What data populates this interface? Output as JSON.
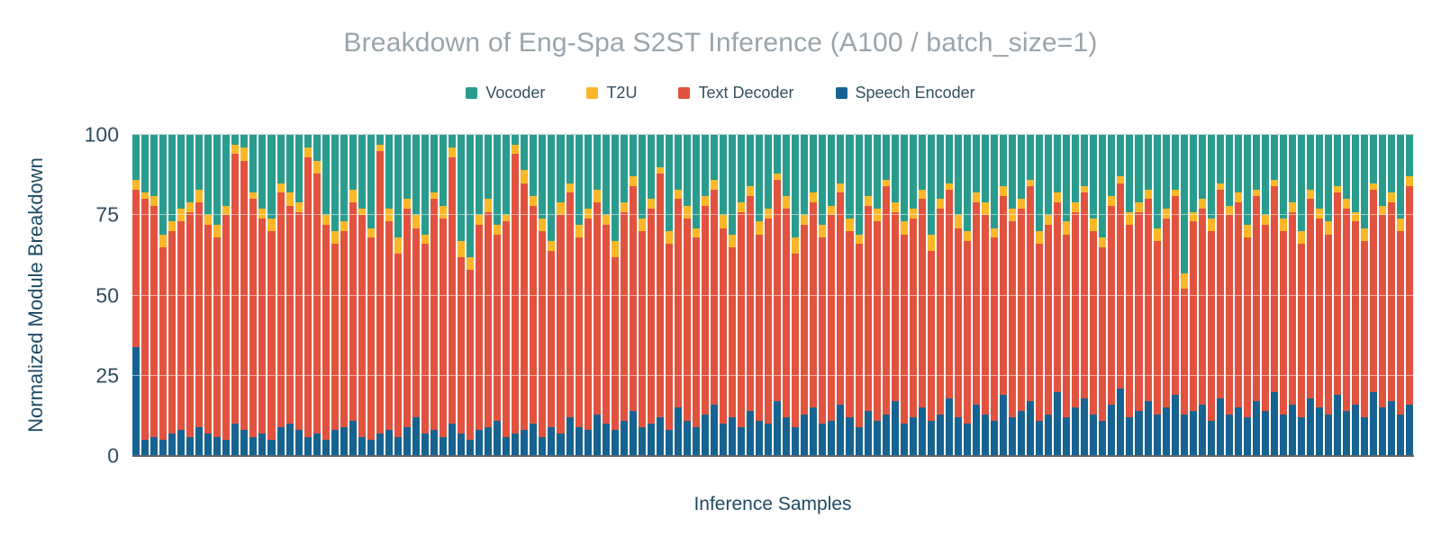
{
  "chart": {
    "title": "Breakdown of Eng-Spa S2ST Inference (A100 / batch_size=1)",
    "title_color": "#9aa4ab",
    "background": "#ffffff"
  },
  "chart_data": {
    "type": "bar",
    "stacked": true,
    "normalized": true,
    "title": "Breakdown of Eng-Spa S2ST Inference (A100 / batch_size=1)",
    "xlabel": "Inference Samples",
    "ylabel": "Normalized Module Breakdown",
    "ylim": [
      0,
      100
    ],
    "yticks": [
      0,
      25,
      50,
      75,
      100
    ],
    "x_tick_labels": "none (142 unlabeled inference samples)",
    "grid": true,
    "legend_position": "top",
    "legend_items": [
      "Vocoder",
      "T2U",
      "Text Decoder",
      "Speech Encoder"
    ],
    "series": [
      {
        "name": "Speech Encoder",
        "color": "#166391",
        "values": [
          34,
          5,
          6,
          5,
          7,
          8,
          6,
          9,
          7,
          6,
          5,
          10,
          8,
          6,
          7,
          5,
          9,
          10,
          8,
          6,
          7,
          5,
          8,
          9,
          11,
          6,
          5,
          7,
          8,
          6,
          9,
          12,
          7,
          8,
          6,
          10,
          7,
          5,
          8,
          9,
          11,
          6,
          7,
          8,
          10,
          6,
          9,
          7,
          12,
          9,
          8,
          13,
          10,
          8,
          11,
          14,
          9,
          10,
          12,
          8,
          15,
          11,
          9,
          13,
          16,
          10,
          12,
          9,
          14,
          11,
          10,
          17,
          12,
          9,
          13,
          15,
          10,
          11,
          16,
          12,
          9,
          14,
          11,
          13,
          17,
          10,
          12,
          15,
          11,
          13,
          18,
          12,
          10,
          16,
          13,
          11,
          19,
          12,
          14,
          17,
          11,
          13,
          20,
          12,
          15,
          18,
          13,
          11,
          16,
          21,
          12,
          14,
          17,
          13,
          15,
          19,
          13,
          14,
          16,
          11,
          18,
          13,
          15,
          12,
          17,
          14,
          20,
          13,
          16,
          12,
          18,
          15,
          13,
          19,
          14,
          16,
          12,
          20,
          15,
          17,
          13,
          16
        ]
      },
      {
        "name": "Text Decoder",
        "color": "#e2533f",
        "values": [
          49,
          75,
          72,
          60,
          63,
          65,
          70,
          70,
          65,
          62,
          70,
          84,
          84,
          74,
          67,
          65,
          73,
          68,
          68,
          87,
          81,
          67,
          58,
          61,
          68,
          69,
          63,
          88,
          65,
          57,
          68,
          59,
          59,
          72,
          68,
          83,
          55,
          53,
          64,
          67,
          58,
          67,
          87,
          77,
          68,
          64,
          55,
          68,
          70,
          59,
          66,
          66,
          62,
          54,
          65,
          70,
          61,
          67,
          76,
          58,
          65,
          63,
          59,
          65,
          67,
          61,
          53,
          67,
          67,
          58,
          64,
          69,
          65,
          54,
          59,
          64,
          58,
          64,
          66,
          58,
          57,
          64,
          62,
          71,
          59,
          59,
          62,
          65,
          53,
          64,
          65,
          59,
          57,
          63,
          62,
          57,
          62,
          61,
          63,
          67,
          55,
          59,
          59,
          57,
          61,
          64,
          57,
          54,
          62,
          64,
          60,
          62,
          63,
          54,
          59,
          62,
          39,
          59,
          61,
          59,
          65,
          62,
          64,
          56,
          64,
          58,
          64,
          57,
          60,
          54,
          62,
          59,
          56,
          63,
          63,
          57,
          55,
          63,
          60,
          62,
          57,
          68
        ]
      },
      {
        "name": "T2U",
        "color": "#fab828",
        "values": [
          3,
          2,
          3,
          4,
          3,
          4,
          3,
          4,
          3,
          4,
          3,
          3,
          4,
          2,
          3,
          4,
          3,
          4,
          3,
          3,
          4,
          3,
          4,
          3,
          4,
          2,
          3,
          2,
          4,
          5,
          3,
          4,
          3,
          2,
          4,
          3,
          5,
          4,
          3,
          4,
          3,
          2,
          3,
          4,
          3,
          4,
          3,
          4,
          3,
          4,
          3,
          4,
          3,
          5,
          3,
          3,
          4,
          3,
          2,
          4,
          3,
          4,
          3,
          3,
          3,
          4,
          4,
          3,
          3,
          4,
          3,
          2,
          4,
          5,
          3,
          3,
          4,
          3,
          3,
          4,
          3,
          3,
          4,
          2,
          3,
          4,
          3,
          3,
          5,
          3,
          2,
          4,
          3,
          3,
          4,
          3,
          3,
          4,
          3,
          2,
          4,
          3,
          3,
          4,
          3,
          2,
          4,
          3,
          3,
          2,
          4,
          3,
          3,
          4,
          3,
          2,
          5,
          3,
          3,
          4,
          2,
          3,
          3,
          4,
          2,
          3,
          2,
          4,
          3,
          4,
          3,
          3,
          4,
          2,
          3,
          3,
          4,
          2,
          3,
          3,
          4,
          3
        ]
      },
      {
        "name": "Vocoder",
        "color": "#2a9c8e",
        "values": [
          14,
          18,
          19,
          31,
          27,
          23,
          21,
          17,
          25,
          28,
          22,
          3,
          4,
          18,
          23,
          26,
          15,
          18,
          21,
          4,
          8,
          25,
          30,
          27,
          17,
          23,
          29,
          3,
          23,
          32,
          20,
          25,
          31,
          18,
          22,
          4,
          33,
          38,
          25,
          20,
          28,
          25,
          3,
          11,
          19,
          26,
          33,
          21,
          15,
          28,
          23,
          17,
          25,
          33,
          21,
          13,
          26,
          20,
          10,
          30,
          17,
          22,
          29,
          19,
          14,
          25,
          31,
          21,
          16,
          27,
          23,
          12,
          19,
          32,
          25,
          18,
          28,
          22,
          15,
          26,
          31,
          19,
          23,
          14,
          21,
          27,
          23,
          17,
          31,
          20,
          15,
          25,
          30,
          18,
          21,
          29,
          16,
          23,
          20,
          14,
          30,
          25,
          18,
          27,
          21,
          16,
          26,
          32,
          19,
          13,
          24,
          21,
          17,
          29,
          23,
          17,
          43,
          24,
          20,
          26,
          15,
          22,
          18,
          28,
          17,
          25,
          14,
          26,
          21,
          30,
          17,
          23,
          27,
          16,
          20,
          24,
          29,
          15,
          22,
          18,
          26,
          13
        ]
      }
    ]
  }
}
